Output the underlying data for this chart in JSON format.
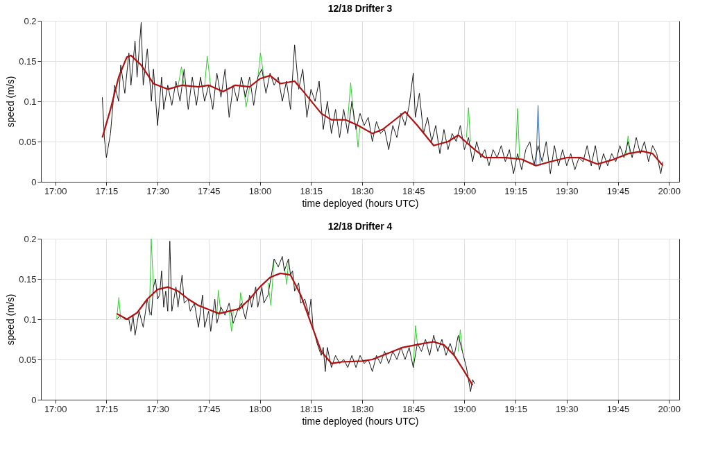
{
  "chart_data": [
    {
      "type": "line",
      "title": "12/18 Drifter 3",
      "xlabel": "time deployed (hours UTC)",
      "ylabel": "speed (m/s)",
      "xlim": [
        16.93,
        20.05
      ],
      "xticks": [
        {
          "value": 17,
          "label": "17:00"
        },
        {
          "value": 17.25,
          "label": "17:15"
        },
        {
          "value": 17.5,
          "label": "17:30"
        },
        {
          "value": 17.75,
          "label": "17:45"
        },
        {
          "value": 18,
          "label": "18:00"
        },
        {
          "value": 18.25,
          "label": "18:15"
        },
        {
          "value": 18.5,
          "label": "18:30"
        },
        {
          "value": 18.75,
          "label": "18:45"
        },
        {
          "value": 19,
          "label": "19:00"
        },
        {
          "value": 19.25,
          "label": "19:15"
        },
        {
          "value": 19.5,
          "label": "19:30"
        },
        {
          "value": 19.75,
          "label": "19:45"
        },
        {
          "value": 20,
          "label": "20:00"
        }
      ],
      "ylim": [
        0,
        0.2
      ],
      "yticks": [
        0,
        0.05,
        0.1,
        0.15,
        0.2
      ],
      "grid": true,
      "line_style": "solid",
      "marker": "none",
      "series": [
        {
          "color": "#33cc33",
          "x": [
            17.6,
            17.617,
            17.63,
            null,
            17.73,
            17.743,
            17.76,
            null,
            17.92,
            17.933,
            17.95,
            null,
            17.99,
            18.003,
            18.02,
            null,
            18.43,
            18.444,
            18.46,
            null,
            18.47,
            18.48,
            18.49,
            null,
            19.01,
            19.02,
            19.03,
            null,
            19.25,
            19.26,
            19.27,
            null,
            19.79,
            19.8,
            19.81
          ],
          "values": [
            0.118,
            0.143,
            0.118,
            null,
            0.118,
            0.156,
            0.118,
            null,
            0.118,
            0.093,
            0.118,
            null,
            0.128,
            0.16,
            0.13,
            null,
            0.078,
            0.123,
            0.077,
            null,
            0.07,
            0.043,
            0.07,
            null,
            0.055,
            0.092,
            0.05,
            null,
            0.03,
            0.091,
            0.03,
            null,
            0.033,
            0.057,
            0.034
          ]
        },
        {
          "color": "#3366aa",
          "x": [
            19.35,
            19.36,
            19.37
          ],
          "values": [
            0.02,
            0.095,
            0.02
          ]
        },
        {
          "color": "#1a1a1a",
          "x": [
            17.23,
            17.24,
            17.25,
            17.27,
            17.29,
            17.31,
            17.32,
            17.34,
            17.36,
            17.37,
            17.39,
            17.4,
            17.42,
            17.43,
            17.45,
            17.47,
            17.48,
            17.5,
            17.52,
            17.53,
            17.55,
            17.57,
            17.59,
            17.61,
            17.63,
            17.65,
            17.67,
            17.69,
            17.71,
            17.73,
            17.75,
            17.77,
            17.79,
            17.81,
            17.83,
            17.85,
            17.87,
            17.89,
            17.91,
            17.93,
            17.95,
            17.97,
            17.99,
            18.01,
            18.03,
            18.05,
            18.07,
            18.09,
            18.11,
            18.13,
            18.15,
            18.17,
            18.19,
            18.21,
            18.23,
            18.25,
            18.27,
            18.29,
            18.31,
            18.33,
            18.35,
            18.37,
            18.39,
            18.41,
            18.43,
            18.45,
            18.47,
            18.49,
            18.51,
            18.53,
            18.55,
            18.57,
            18.59,
            18.61,
            18.63,
            18.65,
            18.67,
            18.69,
            18.71,
            18.73,
            18.75,
            18.76,
            18.78,
            18.8,
            18.82,
            18.84,
            18.86,
            18.88,
            18.9,
            18.92,
            18.94,
            18.96,
            18.98,
            19.0,
            19.02,
            19.04,
            19.06,
            19.08,
            19.1,
            19.12,
            19.14,
            19.16,
            19.18,
            19.2,
            19.22,
            19.24,
            19.26,
            19.28,
            19.3,
            19.32,
            19.34,
            19.36,
            19.38,
            19.4,
            19.42,
            19.44,
            19.46,
            19.48,
            19.5,
            19.52,
            19.54,
            19.56,
            19.58,
            19.6,
            19.62,
            19.64,
            19.66,
            19.68,
            19.7,
            19.72,
            19.74,
            19.76,
            19.78,
            19.8,
            19.82,
            19.84,
            19.86,
            19.88,
            19.9,
            19.92,
            19.94,
            19.96,
            19.97
          ],
          "values": [
            0.105,
            0.055,
            0.03,
            0.06,
            0.12,
            0.1,
            0.145,
            0.11,
            0.16,
            0.12,
            0.175,
            0.13,
            0.198,
            0.12,
            0.165,
            0.1,
            0.14,
            0.07,
            0.13,
            0.09,
            0.12,
            0.095,
            0.125,
            0.1,
            0.14,
            0.09,
            0.13,
            0.095,
            0.13,
            0.1,
            0.12,
            0.09,
            0.135,
            0.105,
            0.14,
            0.08,
            0.12,
            0.1,
            0.13,
            0.105,
            0.13,
            0.095,
            0.13,
            0.14,
            0.11,
            0.135,
            0.12,
            0.13,
            0.1,
            0.125,
            0.09,
            0.17,
            0.115,
            0.14,
            0.08,
            0.115,
            0.1,
            0.125,
            0.065,
            0.1,
            0.06,
            0.09,
            0.055,
            0.09,
            0.06,
            0.1,
            0.065,
            0.085,
            0.07,
            0.08,
            0.05,
            0.075,
            0.06,
            0.065,
            0.04,
            0.07,
            0.055,
            0.085,
            0.07,
            0.095,
            0.135,
            0.08,
            0.11,
            0.06,
            0.08,
            0.05,
            0.07,
            0.035,
            0.065,
            0.04,
            0.06,
            0.05,
            0.07,
            0.04,
            0.055,
            0.025,
            0.05,
            0.03,
            0.04,
            0.02,
            0.04,
            0.03,
            0.045,
            0.025,
            0.04,
            0.01,
            0.035,
            0.015,
            0.04,
            0.05,
            0.02,
            0.045,
            0.025,
            0.05,
            0.01,
            0.045,
            0.02,
            0.04,
            0.02,
            0.035,
            0.015,
            0.03,
            0.025,
            0.045,
            0.02,
            0.045,
            0.015,
            0.035,
            0.02,
            0.035,
            0.025,
            0.045,
            0.03,
            0.05,
            0.03,
            0.055,
            0.035,
            0.05,
            0.025,
            0.045,
            0.035,
            0.01,
            0.025
          ]
        },
        {
          "color": "#b01010",
          "x": [
            17.23,
            17.27,
            17.31,
            17.35,
            17.37,
            17.42,
            17.48,
            17.55,
            17.62,
            17.7,
            17.75,
            17.82,
            17.88,
            17.95,
            18.0,
            18.05,
            18.1,
            18.17,
            18.22,
            18.3,
            18.35,
            18.42,
            18.48,
            18.55,
            18.6,
            18.65,
            18.71,
            18.77,
            18.85,
            18.92,
            18.97,
            19.05,
            19.1,
            19.2,
            19.28,
            19.35,
            19.42,
            19.5,
            19.57,
            19.65,
            19.72,
            19.8,
            19.87,
            19.92,
            19.97
          ],
          "values": [
            0.055,
            0.09,
            0.13,
            0.155,
            0.157,
            0.145,
            0.122,
            0.115,
            0.12,
            0.118,
            0.12,
            0.112,
            0.12,
            0.118,
            0.128,
            0.132,
            0.122,
            0.125,
            0.11,
            0.085,
            0.077,
            0.077,
            0.07,
            0.06,
            0.065,
            0.075,
            0.087,
            0.07,
            0.045,
            0.05,
            0.058,
            0.04,
            0.03,
            0.03,
            0.028,
            0.02,
            0.025,
            0.03,
            0.03,
            0.022,
            0.027,
            0.035,
            0.038,
            0.035,
            0.02
          ]
        }
      ]
    },
    {
      "type": "line",
      "title": "12/18 Drifter 4",
      "xlabel": "time deployed (hours UTC)",
      "ylabel": "speed (m/s)",
      "xlim": [
        16.93,
        20.05
      ],
      "xticks": [
        {
          "value": 17,
          "label": "17:00"
        },
        {
          "value": 17.25,
          "label": "17:15"
        },
        {
          "value": 17.5,
          "label": "17:30"
        },
        {
          "value": 17.75,
          "label": "17:45"
        },
        {
          "value": 18,
          "label": "18:00"
        },
        {
          "value": 18.25,
          "label": "18:15"
        },
        {
          "value": 18.5,
          "label": "18:30"
        },
        {
          "value": 18.75,
          "label": "18:45"
        },
        {
          "value": 19,
          "label": "19:00"
        },
        {
          "value": 19.25,
          "label": "19:15"
        },
        {
          "value": 19.5,
          "label": "19:30"
        },
        {
          "value": 19.75,
          "label": "19:45"
        },
        {
          "value": 20,
          "label": "20:00"
        }
      ],
      "ylim": [
        0,
        0.2
      ],
      "yticks": [
        0,
        0.05,
        0.1,
        0.15,
        0.2
      ],
      "grid": true,
      "line_style": "solid",
      "marker": "none",
      "series": [
        {
          "color": "#33cc33",
          "x": [
            17.3,
            17.311,
            17.32,
            null,
            17.46,
            17.469,
            17.48,
            null,
            17.79,
            17.797,
            17.81,
            null,
            17.85,
            17.862,
            17.87,
            null,
            17.9,
            17.906,
            17.92,
            null,
            18.04,
            18.054,
            18.07,
            null,
            18.12,
            18.132,
            18.14,
            null,
            18.75,
            18.761,
            18.77,
            null,
            18.97,
            18.98,
            18.99
          ],
          "values": [
            0.1,
            0.127,
            0.1,
            null,
            0.105,
            0.2,
            0.14,
            null,
            0.105,
            0.136,
            0.107,
            null,
            0.11,
            0.085,
            0.11,
            null,
            0.11,
            0.133,
            0.115,
            null,
            0.145,
            0.117,
            0.175,
            null,
            0.165,
            0.143,
            0.175,
            null,
            0.04,
            0.092,
            0.07,
            null,
            0.06,
            0.087,
            0.06
          ]
        },
        {
          "color": "#1a1a1a",
          "x": [
            17.3,
            17.32,
            17.34,
            17.36,
            17.37,
            17.38,
            17.39,
            17.41,
            17.43,
            17.45,
            17.46,
            17.47,
            17.48,
            17.49,
            17.5,
            17.51,
            17.52,
            17.53,
            17.54,
            17.55,
            17.56,
            17.57,
            17.59,
            17.6,
            17.62,
            17.63,
            17.65,
            17.66,
            17.68,
            17.7,
            17.72,
            17.73,
            17.75,
            17.76,
            17.78,
            17.79,
            17.81,
            17.83,
            17.85,
            17.87,
            17.89,
            17.91,
            17.93,
            17.95,
            17.96,
            17.98,
            17.99,
            18.01,
            18.02,
            18.04,
            18.05,
            18.07,
            18.09,
            18.11,
            18.12,
            18.14,
            18.15,
            18.16,
            18.17,
            18.19,
            18.2,
            18.22,
            18.24,
            18.25,
            18.26,
            18.28,
            18.3,
            18.31,
            18.32,
            18.33,
            18.35,
            18.37,
            18.39,
            18.41,
            18.43,
            18.45,
            18.47,
            18.49,
            18.51,
            18.53,
            18.55,
            18.57,
            18.59,
            18.61,
            18.63,
            18.65,
            18.67,
            18.69,
            18.71,
            18.73,
            18.75,
            18.77,
            18.79,
            18.81,
            18.83,
            18.85,
            18.87,
            18.89,
            18.91,
            18.93,
            18.95,
            18.97,
            18.99,
            19.01,
            19.03,
            19.04,
            19.05
          ],
          "values": [
            0.1,
            0.105,
            0.1,
            0.1,
            0.085,
            0.105,
            0.08,
            0.11,
            0.09,
            0.125,
            0.11,
            0.105,
            0.14,
            0.15,
            0.125,
            0.13,
            0.16,
            0.115,
            0.135,
            0.11,
            0.197,
            0.11,
            0.14,
            0.115,
            0.155,
            0.12,
            0.125,
            0.11,
            0.12,
            0.09,
            0.13,
            0.09,
            0.11,
            0.085,
            0.125,
            0.095,
            0.115,
            0.105,
            0.12,
            0.095,
            0.11,
            0.12,
            0.1,
            0.13,
            0.115,
            0.14,
            0.115,
            0.14,
            0.12,
            0.13,
            0.145,
            0.175,
            0.165,
            0.178,
            0.16,
            0.175,
            0.155,
            0.16,
            0.135,
            0.145,
            0.12,
            0.125,
            0.105,
            0.125,
            0.09,
            0.07,
            0.055,
            0.065,
            0.035,
            0.065,
            0.04,
            0.055,
            0.045,
            0.05,
            0.04,
            0.055,
            0.04,
            0.055,
            0.045,
            0.05,
            0.035,
            0.055,
            0.045,
            0.06,
            0.045,
            0.06,
            0.05,
            0.065,
            0.05,
            0.065,
            0.04,
            0.07,
            0.06,
            0.075,
            0.055,
            0.08,
            0.06,
            0.075,
            0.055,
            0.07,
            0.055,
            0.08,
            0.06,
            0.04,
            0.01,
            0.025,
            0.02
          ]
        },
        {
          "color": "#b01010",
          "x": [
            17.3,
            17.35,
            17.4,
            17.45,
            17.5,
            17.55,
            17.6,
            17.65,
            17.7,
            17.75,
            17.8,
            17.85,
            17.9,
            17.95,
            18.0,
            18.05,
            18.1,
            18.15,
            18.2,
            18.25,
            18.3,
            18.35,
            18.4,
            18.5,
            18.55,
            18.6,
            18.7,
            18.8,
            18.85,
            18.9,
            18.95,
            19.0,
            19.04
          ],
          "values": [
            0.107,
            0.1,
            0.108,
            0.125,
            0.137,
            0.14,
            0.135,
            0.125,
            0.117,
            0.112,
            0.107,
            0.11,
            0.113,
            0.125,
            0.14,
            0.152,
            0.157,
            0.155,
            0.13,
            0.095,
            0.06,
            0.045,
            0.047,
            0.048,
            0.05,
            0.055,
            0.065,
            0.07,
            0.072,
            0.068,
            0.055,
            0.035,
            0.018
          ]
        }
      ]
    }
  ]
}
